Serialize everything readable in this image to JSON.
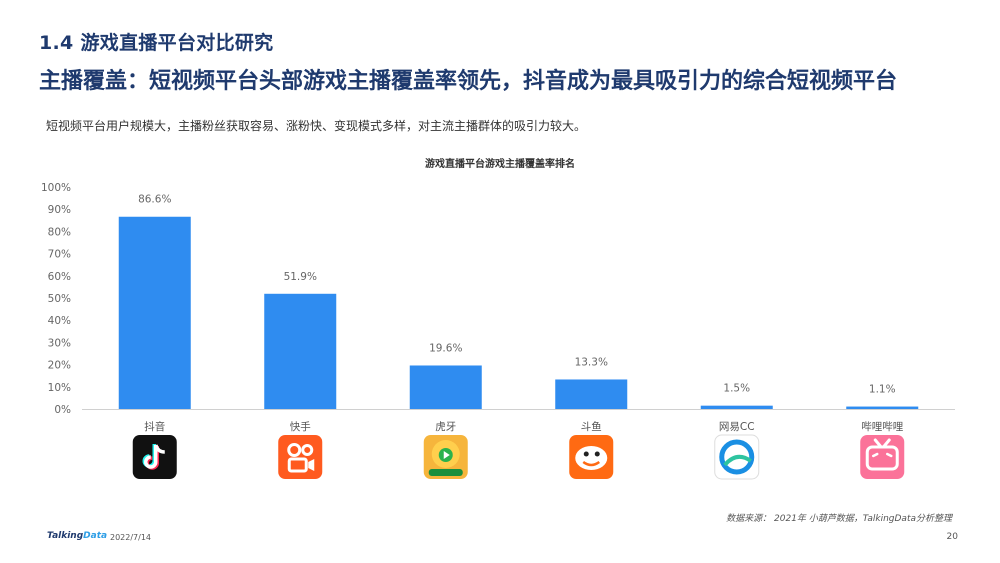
{
  "header": {
    "section_title": "1.4 游戏直播平台对比研究",
    "headline": "主播覆盖：短视频平台头部游戏主播覆盖率领先，抖音成为最具吸引力的综合短视频平台",
    "subtitle": "短视频平台用户规模大，主播粉丝获取容易、涨粉快、变现模式多样，对主流主播群体的吸引力较大。"
  },
  "chart_data": {
    "type": "bar",
    "title": "游戏直播平台游戏主播覆盖率排名",
    "categories": [
      "抖音",
      "快手",
      "虎牙",
      "斗鱼",
      "网易CC",
      "哔哩哔哩"
    ],
    "values": [
      86.6,
      51.9,
      19.6,
      13.3,
      1.5,
      1.1
    ],
    "data_labels": [
      "86.6%",
      "51.9%",
      "19.6%",
      "13.3%",
      "1.5%",
      "1.1%"
    ],
    "ylim": [
      0,
      100
    ],
    "yticks": [
      "0%",
      "10%",
      "20%",
      "30%",
      "40%",
      "50%",
      "60%",
      "70%",
      "80%",
      "90%",
      "100%"
    ],
    "bar_color": "#2f8cf0",
    "grid": false,
    "xlabel": "",
    "ylabel": ""
  },
  "logos": [
    {
      "icon": "douyin-logo-icon",
      "bg": "#111111"
    },
    {
      "icon": "kuaishou-logo-icon",
      "bg": "#ff5a1f"
    },
    {
      "icon": "huya-logo-icon",
      "bg": "#f6b53c"
    },
    {
      "icon": "douyu-logo-icon",
      "bg": "#ff6a13"
    },
    {
      "icon": "netease-cc-logo-icon",
      "bg": "#ffffff"
    },
    {
      "icon": "bilibili-logo-icon",
      "bg": "#fb7299"
    }
  ],
  "footer": {
    "source": "数据来源： 2021年 小葫芦数据，TalkingData分析整理",
    "brand_a": "Talking",
    "brand_b": "Data",
    "date": "2022/7/14",
    "page": "20"
  }
}
